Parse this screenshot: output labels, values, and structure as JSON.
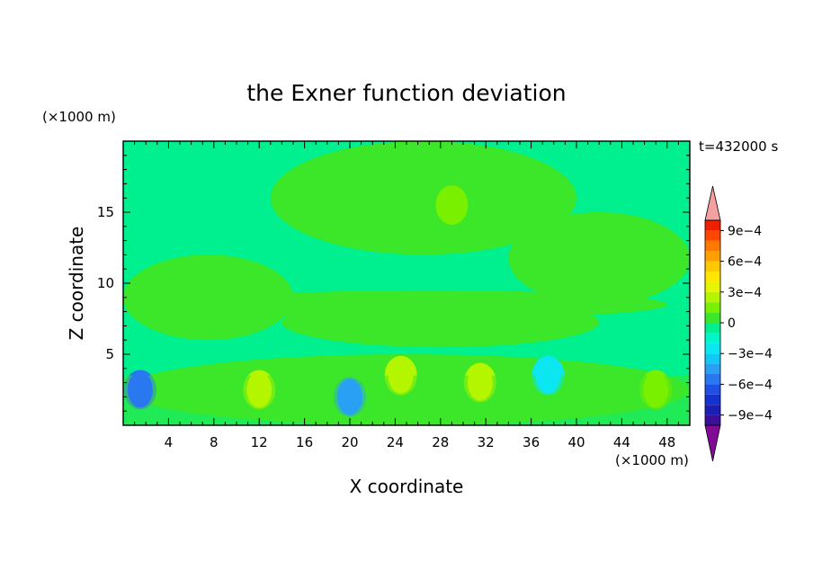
{
  "chart_data": {
    "type": "heatmap",
    "title": "the Exner function deviation",
    "xlabel": "X coordinate",
    "ylabel": "Z coordinate",
    "x_unit": "(×1000 m)",
    "y_unit": "(×1000 m)",
    "time_label": "t=432000 s",
    "xlim": [
      0,
      50
    ],
    "ylim": [
      0,
      20
    ],
    "x_ticks": [
      4,
      8,
      12,
      16,
      20,
      24,
      28,
      32,
      36,
      40,
      44,
      48
    ],
    "y_ticks": [
      5,
      10,
      15
    ],
    "colorbar": {
      "levels": [
        -0.0011,
        -0.001,
        -0.0009,
        -0.0008,
        -0.0007,
        -0.0006,
        -0.0005,
        -0.0004,
        -0.0003,
        -0.0002,
        -0.0001,
        0,
        0.0001,
        0.0002,
        0.0003,
        0.0004,
        0.0005,
        0.0006,
        0.0007,
        0.0008,
        0.0009,
        0.001,
        0.0011
      ],
      "colors": [
        "#820b96",
        "#3c0f9a",
        "#1c1fb4",
        "#1432cf",
        "#1e50e6",
        "#2a78f0",
        "#2aa0f5",
        "#12c8f5",
        "#0ce6f0",
        "#00f5c8",
        "#00f090",
        "#3ce628",
        "#78f000",
        "#b4f500",
        "#e6f500",
        "#ffe600",
        "#ffc800",
        "#ffa000",
        "#ff7800",
        "#ff4600",
        "#f01e00",
        "#f5a0a0"
      ],
      "tick_values": [
        -0.0009,
        -0.0006,
        -0.0003,
        0,
        0.0003,
        0.0006,
        0.0009
      ],
      "tick_labels": [
        "−9e−4",
        "−6e−4",
        "−3e−4",
        "0",
        "3e−4",
        "6e−4",
        "9e−4"
      ]
    },
    "field_background_value": -5e-05,
    "features": [
      {
        "kind": "region",
        "x": [
          6,
          48
        ],
        "z": [
          7.5,
          9.5
        ],
        "value": 5e-05
      },
      {
        "kind": "region",
        "x": [
          0,
          15
        ],
        "z": [
          6,
          12
        ],
        "value": 5e-05
      },
      {
        "kind": "region",
        "x": [
          14,
          42
        ],
        "z": [
          5.5,
          9
        ],
        "value": 5e-05
      },
      {
        "kind": "region",
        "x": [
          13,
          40
        ],
        "z": [
          12,
          20
        ],
        "value": 5e-05
      },
      {
        "kind": "region",
        "x": [
          34,
          50
        ],
        "z": [
          8.5,
          15
        ],
        "value": 5e-05
      },
      {
        "kind": "region",
        "x": [
          0,
          50
        ],
        "z": [
          0,
          5
        ],
        "value": 8e-05
      },
      {
        "kind": "blob",
        "x": 29,
        "z": 15.5,
        "value": 0.00015
      },
      {
        "kind": "blob",
        "x": 1.5,
        "z": 2.5,
        "value": -0.00055
      },
      {
        "kind": "blob",
        "x": 20,
        "z": 2,
        "value": -0.0005
      },
      {
        "kind": "blob",
        "x": 37.5,
        "z": 3.5,
        "value": -0.00025
      },
      {
        "kind": "blob",
        "x": 24.5,
        "z": 3.5,
        "value": 0.0002
      },
      {
        "kind": "blob",
        "x": 12,
        "z": 2.5,
        "value": 0.0002
      },
      {
        "kind": "blob",
        "x": 31.5,
        "z": 3,
        "value": 0.00025
      },
      {
        "kind": "blob",
        "x": 47,
        "z": 2.5,
        "value": 0.00015
      }
    ]
  }
}
